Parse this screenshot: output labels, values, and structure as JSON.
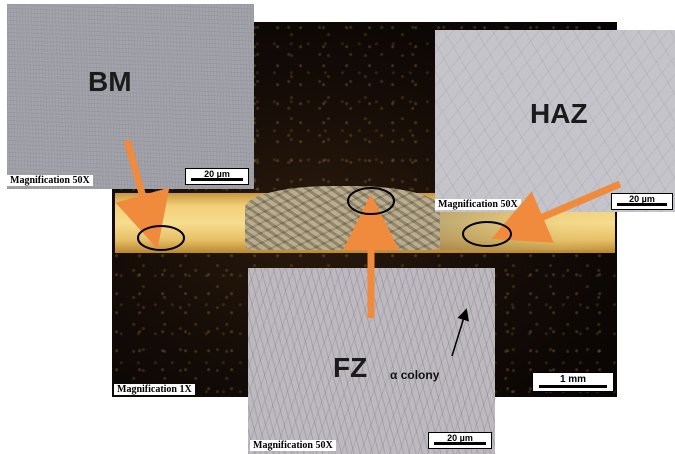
{
  "panels": {
    "bm": {
      "label": "BM",
      "magnification": "Magnification 50X",
      "scale": "20 µm"
    },
    "haz": {
      "label": "HAZ",
      "magnification": "Magnification 50X",
      "scale": "20 µm"
    },
    "fz": {
      "label": "FZ",
      "annotation": "α colony",
      "magnification": "Magnification 50X",
      "scale": "20 µm"
    },
    "main": {
      "magnification": "Magnification 1X",
      "scale": "1 mm"
    }
  },
  "colors": {
    "arrow": "#f08a3c",
    "weld_bright": "#f6dc8e",
    "background_dark": "#120a06"
  }
}
